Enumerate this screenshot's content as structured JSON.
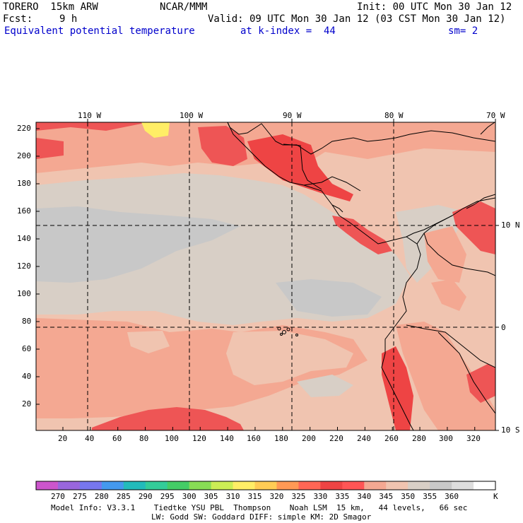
{
  "header": {
    "model": "TORERO  15km ARW",
    "center": "NCAR/MMM",
    "init": "Init: 00 UTC Mon 30 Jan 12",
    "fcst_label": "Fcst:",
    "fcst_value": "9 h",
    "valid": "Valid: 09 UTC Mon 30 Jan 12 (03 CST Mon 30 Jan 12)",
    "field": "Equivalent potential temperature",
    "level": "at k-index =  44",
    "smoothing": "sm= 2"
  },
  "map": {
    "lon_labels": [
      "110 W",
      "100 W",
      "90 W",
      "80 W",
      "70 W"
    ],
    "lat_labels": [
      "10 N",
      "0",
      "10 S"
    ],
    "y_ticks": [
      "220",
      "200",
      "180",
      "160",
      "140",
      "120",
      "100",
      "80",
      "60",
      "40",
      "20"
    ],
    "x_ticks": [
      "20",
      "40",
      "60",
      "80",
      "100",
      "120",
      "140",
      "160",
      "180",
      "200",
      "220",
      "240",
      "260",
      "280",
      "300",
      "320"
    ]
  },
  "colorbar": {
    "colors": [
      "#cc55cc",
      "#9966dd",
      "#7777ee",
      "#4499ee",
      "#22bbbb",
      "#33cc99",
      "#44cc66",
      "#88dd55",
      "#ccee55",
      "#ffee66",
      "#ffcc55",
      "#ff9955",
      "#ff6655",
      "#ee4444",
      "#ff5555",
      "#f4a892",
      "#f0c4b0",
      "#d8cfc6",
      "#c8c8c8",
      "#dedede",
      "#ffffff"
    ],
    "labels": [
      "270",
      "275",
      "280",
      "285",
      "290",
      "295",
      "300",
      "305",
      "310",
      "315",
      "320",
      "325",
      "330",
      "335",
      "340",
      "345",
      "350",
      "355",
      "360"
    ],
    "units": "K"
  },
  "footer": {
    "line1": "Model Info: V3.3.1    Tiedtke YSU PBL  Thompson    Noah LSM  15 km,   44 levels,   66 sec",
    "line2": "LW: Godd SW: Goddard DIFF: simple KM: 2D Smagor"
  }
}
